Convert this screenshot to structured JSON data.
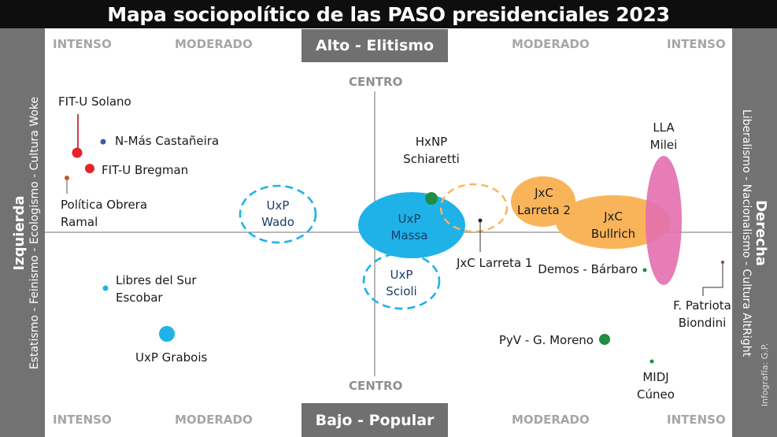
{
  "title": "Mapa sociopolítico de las PASO presidenciales 2023",
  "left_panel": {
    "heading": "Izquierda",
    "subtitle": "Estatismo - Feinismo - Ecologismo - Cultura Woke"
  },
  "right_panel": {
    "heading": "Derecha",
    "subtitle": "Liberalismo - Nacionalismo - Cultura AltRight"
  },
  "top_label": "Alto - Elitismo",
  "bottom_label": "Bajo - Popular",
  "scale_labels": {
    "intense": "INTENSO",
    "moderate": "MODERADO"
  },
  "center_label": "CENTRO",
  "credit": "Infografía: G.P.",
  "colors": {
    "red": "#e3242b",
    "orange_dot": "#c55a1a",
    "navy_dot": "#3f5b9a",
    "light_blue": "#1fb2e8",
    "green": "#1f8d44",
    "orange_fill": "#f9b45a",
    "pink": "#e36fae",
    "brown": "#8a4a2a"
  },
  "items": {
    "fit_solano": [
      "FIT-U Solano"
    ],
    "nmas": [
      "N-Más Castañeira"
    ],
    "fit_bregman": [
      "FIT-U Bregman"
    ],
    "po_ramal": [
      "Política Obrera",
      "Ramal"
    ],
    "uxp_wado": [
      "UxP",
      "Wado"
    ],
    "hxnp": [
      "HxNP",
      "Schiaretti"
    ],
    "uxp_massa": [
      "UxP",
      "Massa"
    ],
    "jxc_larreta2": [
      "JxC",
      "Larreta 2"
    ],
    "jxc_bullrich": [
      "JxC",
      "Bullrich"
    ],
    "lla": [
      "LLA",
      "Milei"
    ],
    "jxc_larreta1": [
      "JxC Larreta 1"
    ],
    "demos": [
      "Demos - Bárbaro"
    ],
    "uxp_scioli": [
      "UxP",
      "Scioli"
    ],
    "libres": [
      "Libres del Sur",
      "Escobar"
    ],
    "fpatriota": [
      "F. Patriota",
      "Biondini"
    ],
    "uxp_grabois": [
      "UxP Grabois"
    ],
    "pyv": [
      "PyV - G. Moreno"
    ],
    "midj": [
      "MIDJ",
      "Cúneo"
    ]
  }
}
